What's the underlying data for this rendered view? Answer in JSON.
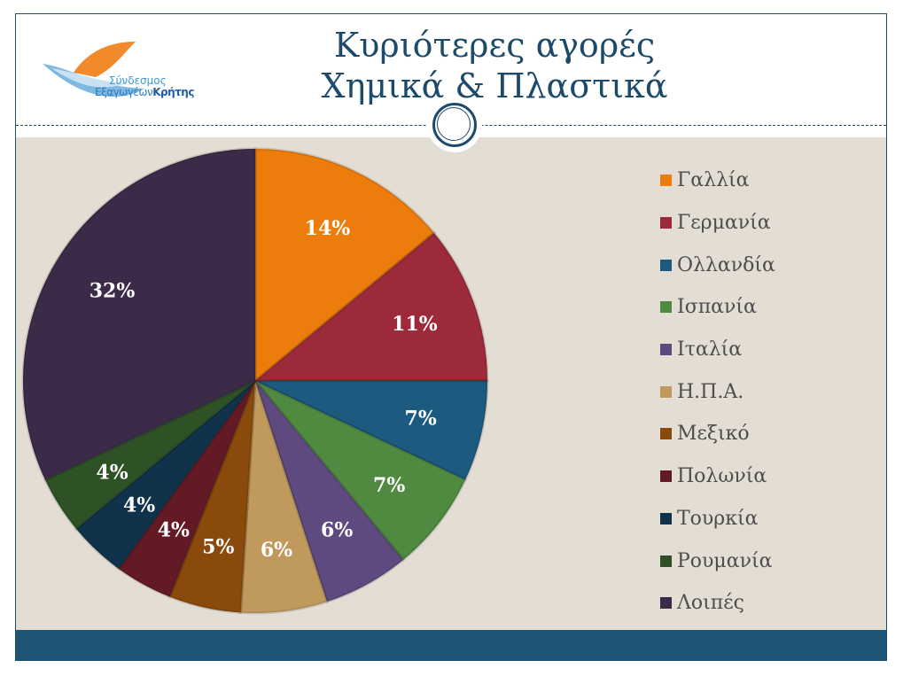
{
  "header": {
    "title_line1": "Κυριότερες αγορές",
    "title_line2": "Χημικά & Πλαστικά",
    "logo_text_line1": "Σύνδεσμος",
    "logo_text_line2a": "Εξαγωγέων",
    "logo_text_line2b": "Κρήτης"
  },
  "chart_data": {
    "type": "pie",
    "legend_placement": "right",
    "start": "top, clockwise",
    "categories": [
      "Γαλλία",
      "Γερμανία",
      "Ολλανδία",
      "Ισπανία",
      "Ιταλία",
      "Η.Π.Α.",
      "Μεξικό",
      "Πολωνία",
      "Τουρκία",
      "Ρουμανία",
      "Λοιπές"
    ],
    "values": [
      14,
      11,
      7,
      7,
      6,
      6,
      5,
      4,
      4,
      4,
      32
    ],
    "labels": [
      "14%",
      "11%",
      "7%",
      "7%",
      "6%",
      "6%",
      "5%",
      "4%",
      "4%",
      "4%",
      "32%"
    ],
    "colors": [
      "#ec7c0b",
      "#9c2a3a",
      "#1c5a80",
      "#4f8a40",
      "#5f4a80",
      "#c09a5c",
      "#8a4a0b",
      "#641a24",
      "#10324a",
      "#2e5226",
      "#3b2a48"
    ]
  }
}
